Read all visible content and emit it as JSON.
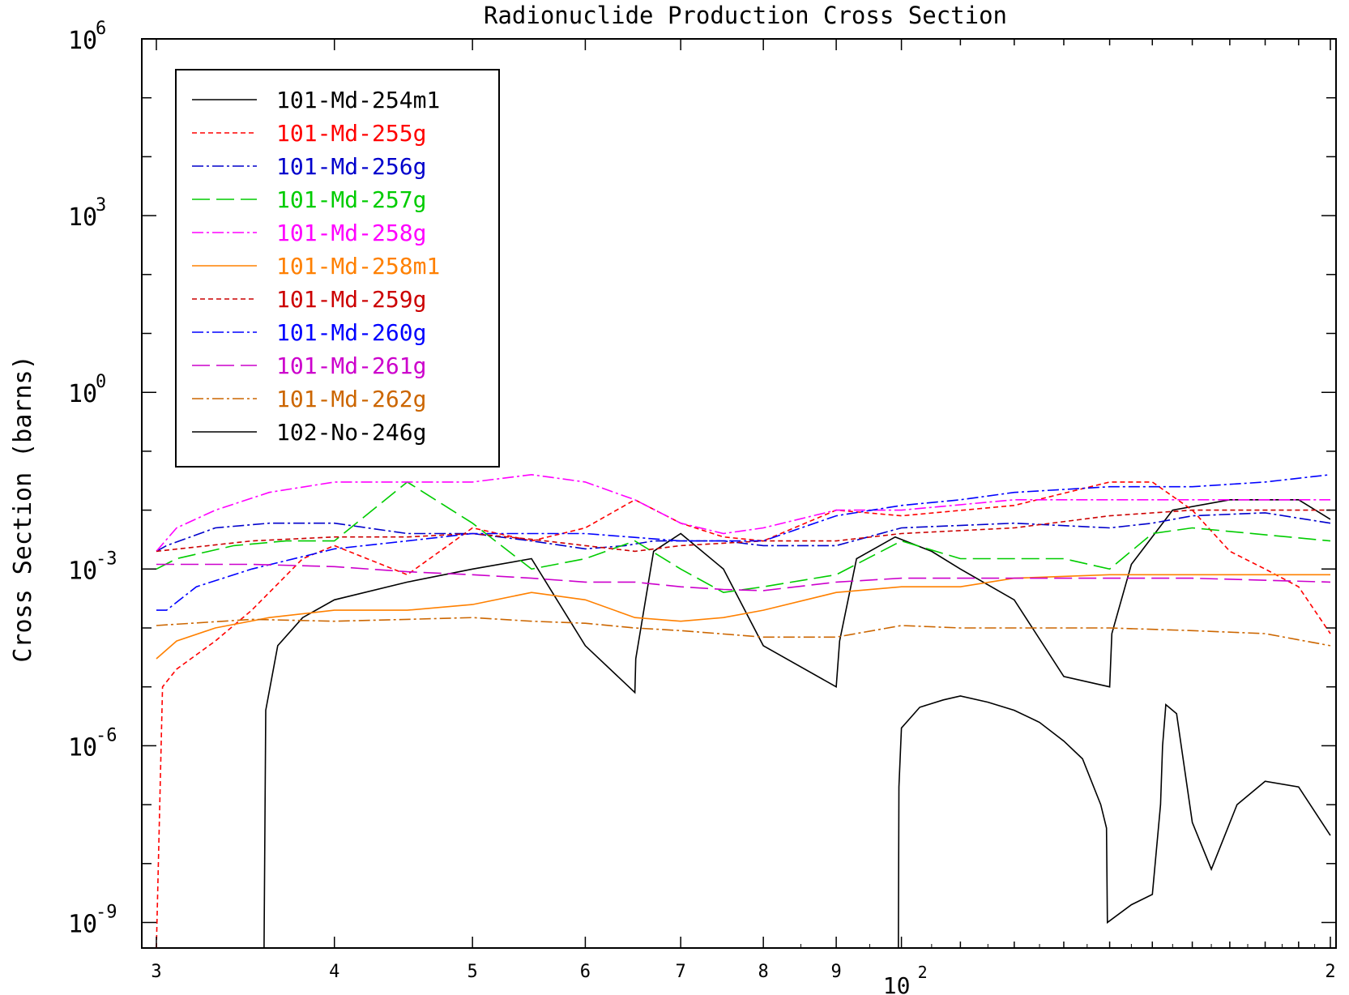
{
  "chart_data": {
    "type": "line",
    "title": "Radionuclide Production Cross Section",
    "xlabel": "",
    "ylabel": "Cross Section (barns)",
    "x_scale": "log",
    "y_scale": "log",
    "xlim": [
      30,
      200
    ],
    "ylim": [
      3e-11,
      1000000.0
    ],
    "x_ticks": [
      {
        "value": 30,
        "label": "3"
      },
      {
        "value": 40,
        "label": "4"
      },
      {
        "value": 50,
        "label": "5"
      },
      {
        "value": 60,
        "label": "6"
      },
      {
        "value": 70,
        "label": "7"
      },
      {
        "value": 80,
        "label": "8"
      },
      {
        "value": 90,
        "label": "9"
      },
      {
        "value": 200,
        "label": "2"
      }
    ],
    "x_decade_label": {
      "value": 100,
      "base": "10",
      "exp": "2"
    },
    "y_ticks": [
      {
        "value": 1000000.0,
        "base": "10",
        "exp": "6"
      },
      {
        "value": 1000.0,
        "base": "10",
        "exp": "3"
      },
      {
        "value": 1,
        "base": "10",
        "exp": "0"
      },
      {
        "value": 0.001,
        "base": "10",
        "exp": "-3"
      },
      {
        "value": 1e-06,
        "base": "10",
        "exp": "-6"
      },
      {
        "value": 1e-09,
        "base": "10",
        "exp": "-9"
      }
    ],
    "legend_position": "top-left",
    "series": [
      {
        "name": "101-Md-254m1",
        "color": "#000000",
        "dash": "solid",
        "x": [
          35.7,
          35.8,
          36.5,
          38,
          40,
          45,
          50,
          55,
          60,
          65,
          65.1,
          67,
          70,
          75,
          80,
          90,
          90.5,
          93,
          99,
          105,
          110,
          120,
          130,
          140,
          140.5,
          145,
          155,
          170,
          190,
          200
        ],
        "y": [
          3e-11,
          4e-06,
          5e-05,
          0.00015,
          0.0003,
          0.0006,
          0.001,
          0.0015,
          5e-05,
          8e-06,
          3e-05,
          0.002,
          0.004,
          0.001,
          5e-05,
          1e-05,
          6e-05,
          0.0015,
          0.0035,
          0.002,
          0.001,
          0.0003,
          1.5e-05,
          1e-05,
          8e-05,
          0.0012,
          0.01,
          0.015,
          0.015,
          0.007
        ]
      },
      {
        "name": "101-Md-255g",
        "color": "#ff0000",
        "dash": "6,4",
        "x": [
          30,
          30.3,
          31,
          33,
          35,
          38,
          40,
          45,
          50,
          55,
          60,
          65,
          70,
          75,
          80,
          90,
          100,
          120,
          140,
          150,
          160,
          170,
          180,
          190,
          200
        ],
        "y": [
          1e-10,
          1e-05,
          2e-05,
          6e-05,
          0.0002,
          0.0015,
          0.0025,
          0.0008,
          0.005,
          0.003,
          0.005,
          0.015,
          0.006,
          0.0035,
          0.003,
          0.01,
          0.008,
          0.012,
          0.03,
          0.03,
          0.01,
          0.002,
          0.001,
          0.0005,
          8e-05
        ]
      },
      {
        "name": "101-Md-256g",
        "color": "#0000cc",
        "dash": "14,4,3,4",
        "x": [
          30,
          30.5,
          33,
          36,
          40,
          45,
          50,
          55,
          60,
          64,
          67,
          70,
          75,
          80,
          90,
          100,
          120,
          140,
          150,
          160,
          180,
          200
        ],
        "y": [
          0.002,
          0.0025,
          0.005,
          0.006,
          0.006,
          0.004,
          0.004,
          0.003,
          0.0022,
          0.0025,
          0.003,
          0.003,
          0.003,
          0.0025,
          0.0025,
          0.005,
          0.006,
          0.005,
          0.006,
          0.008,
          0.009,
          0.006
        ]
      },
      {
        "name": "101-Md-257g",
        "color": "#00cc00",
        "dash": "22,8",
        "x": [
          30,
          31,
          34,
          37,
          40,
          45,
          50,
          55,
          60,
          65,
          70,
          75,
          80,
          90,
          100,
          110,
          120,
          130,
          140,
          150,
          160,
          200
        ],
        "y": [
          0.001,
          0.0015,
          0.0025,
          0.003,
          0.003,
          0.03,
          0.006,
          0.001,
          0.0015,
          0.003,
          0.001,
          0.0004,
          0.0005,
          0.0008,
          0.003,
          0.0015,
          0.0015,
          0.0015,
          0.001,
          0.004,
          0.005,
          0.003
        ]
      },
      {
        "name": "101-Md-258g",
        "color": "#ff00ff",
        "dash": "14,4,3,4",
        "x": [
          30,
          31,
          33,
          36,
          40,
          45,
          50,
          55,
          60,
          65,
          70,
          75,
          80,
          90,
          100,
          120,
          140,
          160,
          200
        ],
        "y": [
          0.002,
          0.005,
          0.01,
          0.02,
          0.03,
          0.03,
          0.03,
          0.04,
          0.03,
          0.015,
          0.006,
          0.004,
          0.005,
          0.01,
          0.01,
          0.015,
          0.015,
          0.015,
          0.015
        ]
      },
      {
        "name": "101-Md-258m1",
        "color": "#ff8000",
        "dash": "solid",
        "x": [
          30,
          31,
          33,
          36,
          40,
          45,
          50,
          55,
          60,
          65,
          70,
          75,
          80,
          90,
          100,
          110,
          120,
          140,
          160,
          200
        ],
        "y": [
          3e-05,
          6e-05,
          0.0001,
          0.00015,
          0.0002,
          0.0002,
          0.00025,
          0.0004,
          0.0003,
          0.00015,
          0.00013,
          0.00015,
          0.0002,
          0.0004,
          0.0005,
          0.0005,
          0.0007,
          0.0008,
          0.0008,
          0.0008
        ]
      },
      {
        "name": "101-Md-259g",
        "color": "#cc0000",
        "dash": "6,4",
        "x": [
          30,
          35,
          40,
          45,
          50,
          55,
          60,
          65,
          70,
          80,
          90,
          100,
          120,
          140,
          160,
          200
        ],
        "y": [
          0.002,
          0.003,
          0.0035,
          0.0035,
          0.004,
          0.0032,
          0.0025,
          0.002,
          0.0025,
          0.003,
          0.003,
          0.004,
          0.005,
          0.008,
          0.01,
          0.01
        ]
      },
      {
        "name": "101-Md-260g",
        "color": "#0000ff",
        "dash": "14,4,3,4",
        "x": [
          30,
          30.5,
          32,
          35,
          40,
          45,
          50,
          55,
          60,
          70,
          80,
          90,
          100,
          110,
          120,
          140,
          160,
          180,
          200
        ],
        "y": [
          0.0002,
          0.0002,
          0.0005,
          0.001,
          0.0022,
          0.003,
          0.004,
          0.004,
          0.004,
          0.003,
          0.003,
          0.008,
          0.012,
          0.015,
          0.02,
          0.025,
          0.025,
          0.03,
          0.04
        ]
      },
      {
        "name": "101-Md-261g",
        "color": "#cc00cc",
        "dash": "22,8",
        "x": [
          30,
          35,
          40,
          45,
          50,
          55,
          60,
          65,
          70,
          75,
          80,
          90,
          100,
          120,
          140,
          160,
          200
        ],
        "y": [
          0.0012,
          0.0012,
          0.0011,
          0.0009,
          0.0008,
          0.0007,
          0.0006,
          0.0006,
          0.0005,
          0.00045,
          0.00043,
          0.0006,
          0.0007,
          0.0007,
          0.0007,
          0.0007,
          0.0006
        ]
      },
      {
        "name": "101-Md-262g",
        "color": "#cc6600",
        "dash": "14,4,3,4",
        "x": [
          30,
          35,
          40,
          45,
          50,
          55,
          60,
          65,
          70,
          80,
          90,
          100,
          110,
          120,
          140,
          160,
          180,
          200
        ],
        "y": [
          0.00011,
          0.00014,
          0.00013,
          0.00014,
          0.00015,
          0.00013,
          0.00012,
          0.0001,
          9e-05,
          7e-05,
          7e-05,
          0.00011,
          0.0001,
          0.0001,
          0.0001,
          9e-05,
          8e-05,
          5e-05
        ]
      },
      {
        "name": "102-No-246g",
        "color": "#000000",
        "dash": "solid",
        "x": [
          99.5,
          99.6,
          100,
          103,
          107,
          110,
          115,
          120,
          125,
          130,
          134,
          138,
          139.3,
          139.5,
          145,
          150,
          152,
          152.5,
          153.2,
          153.3,
          156,
          160,
          165,
          172,
          180,
          190,
          200
        ],
        "y": [
          3e-11,
          2e-07,
          2e-06,
          4.5e-06,
          6e-06,
          7e-06,
          5.5e-06,
          4e-06,
          2.5e-06,
          1.2e-06,
          6e-07,
          1e-07,
          4e-08,
          1e-09,
          2e-09,
          3e-09,
          1e-07,
          1e-06,
          4e-06,
          5e-06,
          3.5e-06,
          5e-08,
          8e-09,
          1e-07,
          2.5e-07,
          2e-07,
          3e-08
        ]
      }
    ]
  }
}
